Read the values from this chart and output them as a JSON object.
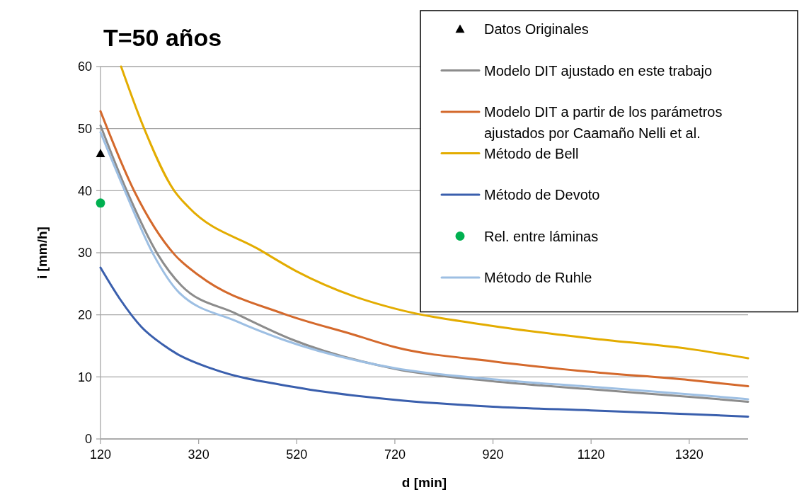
{
  "chart_data": {
    "type": "line",
    "title": "T=50 años",
    "xlabel": "d [min]",
    "ylabel": "i [mm/h]",
    "xlim": [
      120,
      1440
    ],
    "xticks": [
      120,
      320,
      520,
      720,
      920,
      1120,
      1320
    ],
    "ylim": [
      0,
      60
    ],
    "yticks": [
      0,
      10,
      20,
      30,
      40,
      50,
      60
    ],
    "grid": "y",
    "legend": "top right",
    "line_style": "solid",
    "series": [
      {
        "name": "Datos Originales",
        "type": "scatter",
        "marker": "triangle",
        "color": "#000000",
        "x": [
          120
        ],
        "values": [
          46
        ]
      },
      {
        "name": "Modelo DIT ajustado en este trabajo",
        "color": "#8c8c8c",
        "x": [
          120,
          174,
          237,
          285,
          396,
          511,
          720,
          920,
          1120,
          1320,
          1440
        ],
        "values": [
          50.5,
          39.9,
          29.7,
          24.7,
          20.2,
          16.0,
          11.3,
          9.3,
          8.0,
          6.8,
          6.0
        ]
      },
      {
        "name": "Modelo DIT a partir de los parámetros ajustados por Caamaño Nelli et al.",
        "color": "#d4692c",
        "x": [
          120,
          189,
          271,
          323,
          492,
          636,
          720,
          920,
          1120,
          1320,
          1440
        ],
        "values": [
          52.8,
          39.9,
          29.7,
          26.2,
          20.2,
          16.8,
          14.8,
          12.5,
          10.8,
          9.5,
          8.5
        ]
      },
      {
        "name": "Método de Bell",
        "color": "#e3ac00",
        "x": [
          162,
          208,
          271,
          300,
          444,
          520,
          636,
          720,
          920,
          1120,
          1320,
          1440
        ],
        "values": [
          60,
          50.2,
          39.9,
          37.3,
          30.5,
          27,
          23.0,
          21,
          18.2,
          16.2,
          14.5,
          13.0
        ]
      },
      {
        "name": "Método de Devoto",
        "color": "#3a5fad",
        "x": [
          120,
          160,
          204,
          247,
          276,
          348,
          520,
          720,
          920,
          1120,
          1320,
          1440
        ],
        "values": [
          27.6,
          22.5,
          18.0,
          15.2,
          13.7,
          11.3,
          8.3,
          6.3,
          5.2,
          4.6,
          4.0,
          3.6
        ]
      },
      {
        "name": "Rel. entre láminas",
        "type": "scatter",
        "marker": "circle",
        "color": "#00b050",
        "x": [
          120
        ],
        "values": [
          38
        ]
      },
      {
        "name": "Método de Ruhle",
        "color": "#9dbfe3",
        "x": [
          120,
          170,
          228,
          280,
          396,
          492,
          720,
          920,
          1120,
          1320,
          1440
        ],
        "values": [
          49.4,
          39.9,
          29.7,
          23.6,
          19.0,
          16.0,
          11.4,
          9.6,
          8.4,
          7.2,
          6.4
        ]
      }
    ]
  }
}
